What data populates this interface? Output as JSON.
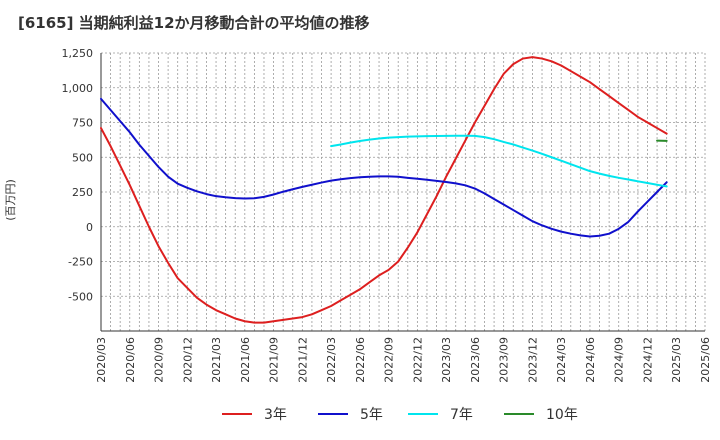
{
  "chart_data": {
    "type": "line",
    "title": "[6165]  当期純利益12か月移動合計の平均値の推移",
    "ylabel": "(百万円)",
    "xlabel": "",
    "ylim": [
      -750,
      1250
    ],
    "yticks": [
      1250,
      1000,
      750,
      500,
      250,
      0,
      -250,
      -500
    ],
    "ytick_labels": [
      "1,250",
      "1,000",
      "750",
      "500",
      "250",
      "0",
      "-250",
      "-500"
    ],
    "x_tick_labels": [
      "2020/03",
      "2020/06",
      "2020/09",
      "2020/12",
      "2021/03",
      "2021/06",
      "2021/09",
      "2021/12",
      "2022/03",
      "2022/06",
      "2022/09",
      "2022/12",
      "2023/03",
      "2023/06",
      "2023/09",
      "2023/12",
      "2024/03",
      "2024/06",
      "2024/09",
      "2024/12",
      "2025/03",
      "2025/06"
    ],
    "grid": true,
    "legend_position": "bottom",
    "series": [
      {
        "name": "3年",
        "color": "#dd1f1f",
        "start_index": 0,
        "values": [
          710,
          580,
          440,
          300,
          150,
          0,
          -140,
          -260,
          -370,
          -440,
          -510,
          -560,
          -600,
          -630,
          -660,
          -680,
          -690,
          -690,
          -680,
          -670,
          -660,
          -650,
          -630,
          -600,
          -570,
          -530,
          -490,
          -450,
          -400,
          -350,
          -310,
          -250,
          -150,
          -40,
          90,
          220,
          360,
          490,
          620,
          750,
          870,
          990,
          1100,
          1170,
          1210,
          1220,
          1210,
          1190,
          1160,
          1120,
          1080,
          1040,
          990,
          940,
          890,
          840,
          790,
          750,
          710,
          670
        ]
      },
      {
        "name": "5年",
        "color": "#1010cc",
        "start_index": 0,
        "values": [
          920,
          840,
          760,
          680,
          590,
          510,
          430,
          360,
          310,
          280,
          255,
          235,
          220,
          212,
          206,
          203,
          205,
          215,
          232,
          252,
          270,
          287,
          302,
          318,
          332,
          342,
          350,
          356,
          360,
          362,
          362,
          360,
          352,
          345,
          338,
          330,
          322,
          312,
          298,
          275,
          240,
          200,
          160,
          120,
          80,
          40,
          10,
          -15,
          -35,
          -50,
          -62,
          -70,
          -65,
          -50,
          -15,
          35,
          110,
          180,
          250,
          320
        ]
      },
      {
        "name": "7年",
        "color": "#00e5ee",
        "start_index": 24,
        "values": [
          580,
          592,
          605,
          617,
          627,
          635,
          641,
          645,
          648,
          650,
          652,
          653,
          654,
          655,
          655,
          654,
          645,
          630,
          610,
          592,
          570,
          548,
          525,
          500,
          475,
          450,
          425,
          400,
          382,
          366,
          352,
          340,
          327,
          315,
          302,
          290
        ]
      },
      {
        "name": "10年",
        "color": "#2a8a2a",
        "start_index": 58,
        "values": [
          620,
          618
        ]
      }
    ]
  }
}
